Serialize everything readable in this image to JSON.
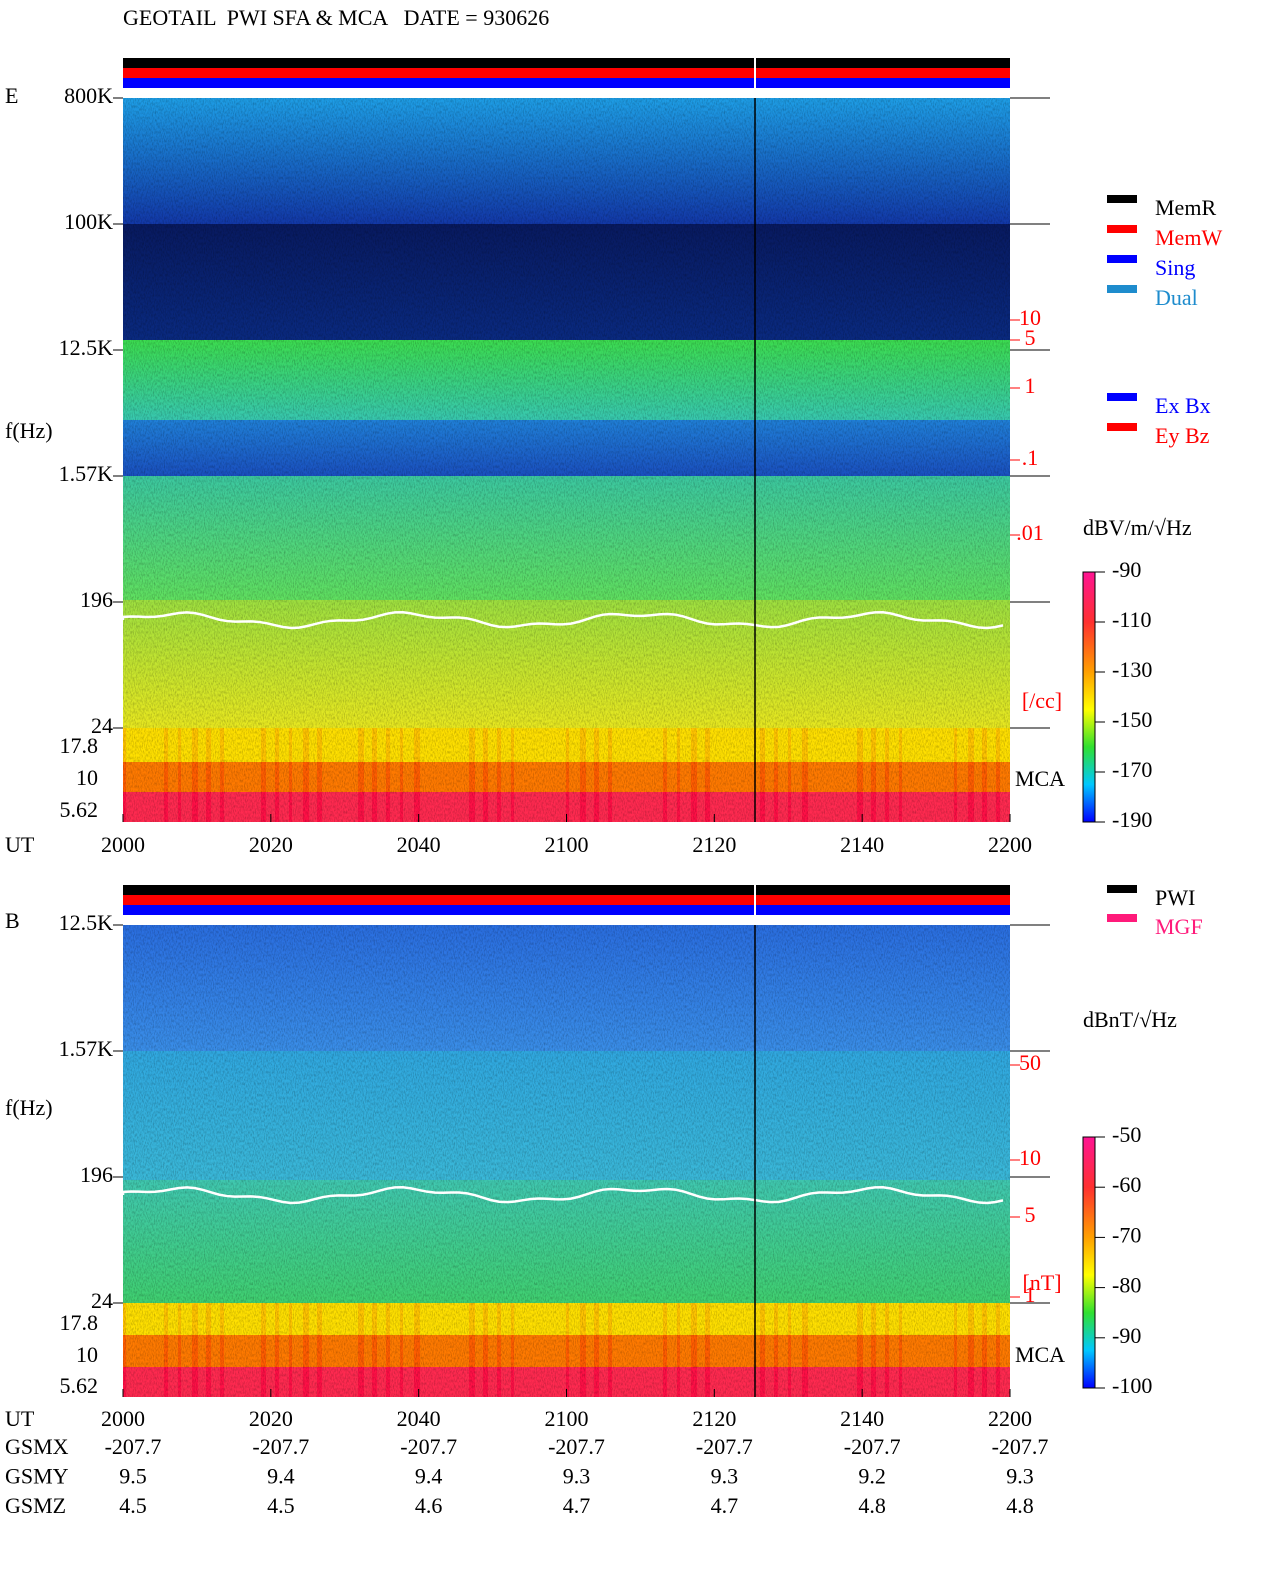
{
  "title": "GEOTAIL  PWI SFA & MCA   DATE = 930626",
  "panels": [
    {
      "label": "E",
      "y_label": "f(Hz)",
      "freq_ticks": [
        "800K",
        "100K",
        "12.5K",
        "1.57K",
        "196",
        "24"
      ],
      "mca_ticks": [
        "17.8",
        "10",
        "5.62"
      ],
      "mca_label": "MCA",
      "x_label": "UT",
      "x_ticks": [
        "2000",
        "2020",
        "2040",
        "2100",
        "2120",
        "2140",
        "2200"
      ],
      "scale_ticks": [
        "10",
        "5",
        "1",
        ".1",
        ".01"
      ],
      "scale_unit": "[/cc]",
      "colorbar_unit": "dBV/m/√Hz",
      "colorbar_ticks": [
        -90,
        -110,
        -130,
        -150,
        -170,
        -190
      ],
      "legend": [
        {
          "name": "MemR",
          "color": "#000000"
        },
        {
          "name": "MemW",
          "color": "#ff0000"
        },
        {
          "name": "Sing",
          "color": "#0000ff"
        },
        {
          "name": "Dual",
          "color": "#1e8ccd"
        }
      ],
      "legend_2": [
        {
          "name": "Ex Bx",
          "color": "#0000ff"
        },
        {
          "name": "Ey Bz",
          "color": "#ff0000"
        }
      ]
    },
    {
      "label": "B",
      "y_label": "f(Hz)",
      "freq_ticks": [
        "12.5K",
        "1.57K",
        "196",
        "24"
      ],
      "mca_ticks": [
        "17.8",
        "10",
        "5.62"
      ],
      "mca_label": "MCA",
      "x_label": "UT",
      "x_ticks": [
        "2000",
        "2020",
        "2040",
        "2100",
        "2120",
        "2140",
        "2200"
      ],
      "scale_ticks": [
        "50",
        "10",
        "5",
        "1"
      ],
      "scale_unit": "[nT]",
      "colorbar_unit": "dBnT/√Hz",
      "colorbar_ticks": [
        -50,
        -60,
        -70,
        -80,
        -90,
        -100
      ],
      "legend": [
        {
          "name": "PWI",
          "color": "#000000"
        },
        {
          "name": "MGF",
          "color": "#ff1a7a"
        }
      ]
    }
  ],
  "ephemeris": [
    {
      "name": "GSMX",
      "values": [
        -207.7,
        -207.7,
        -207.7,
        -207.7,
        -207.7,
        -207.7,
        -207.7
      ]
    },
    {
      "name": "GSMY",
      "values": [
        9.5,
        9.4,
        9.4,
        9.3,
        9.3,
        9.2,
        9.3
      ]
    },
    {
      "name": "GSMZ",
      "values": [
        4.5,
        4.5,
        4.6,
        4.7,
        4.7,
        4.8,
        4.8
      ]
    }
  ]
}
